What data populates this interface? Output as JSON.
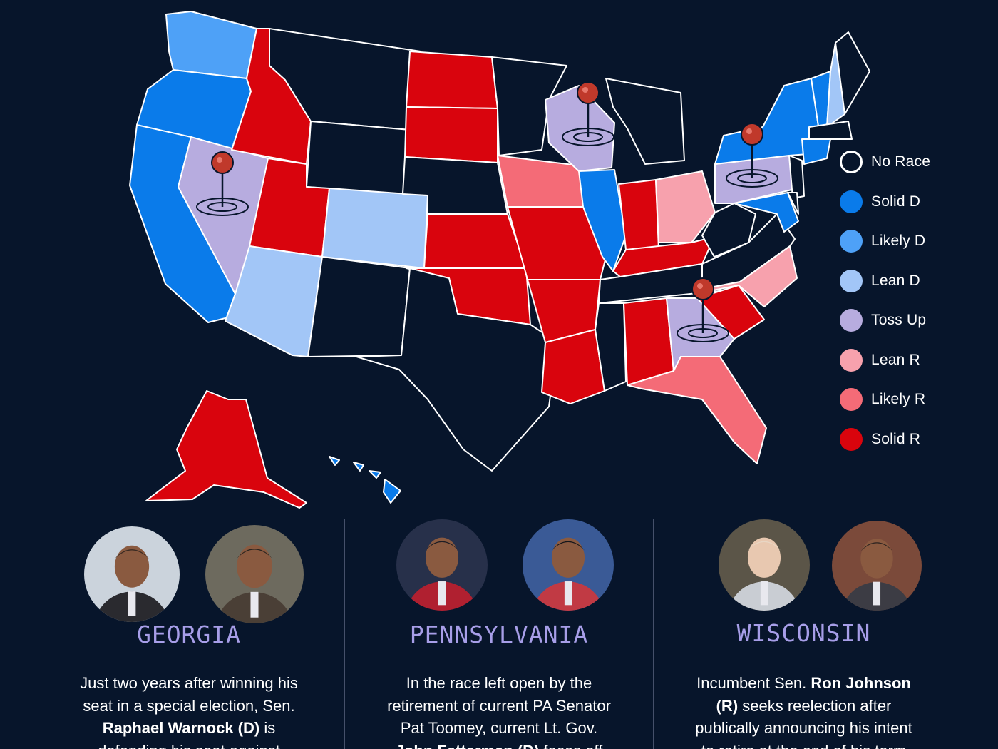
{
  "colors": {
    "background": "#07152b",
    "no_race": "#07152b",
    "solid_d": "#0a7bea",
    "likely_d": "#4ea1f7",
    "lean_d": "#a2c6f7",
    "toss_up": "#b7acdf",
    "lean_r": "#f7a1ad",
    "likely_r": "#f46b77",
    "solid_r": "#d9040d",
    "state_border": "#ffffff",
    "pin": "#c0392b",
    "headline": "#a79ee8"
  },
  "legend": [
    {
      "key": "no_race",
      "label": "No Race"
    },
    {
      "key": "solid_d",
      "label": "Solid D"
    },
    {
      "key": "likely_d",
      "label": "Likely D"
    },
    {
      "key": "lean_d",
      "label": "Lean D"
    },
    {
      "key": "toss_up",
      "label": "Toss Up"
    },
    {
      "key": "lean_r",
      "label": "Lean R"
    },
    {
      "key": "likely_r",
      "label": "Likely R"
    },
    {
      "key": "solid_r",
      "label": "Solid R"
    }
  ],
  "map": {
    "states": {
      "WA": "likely_d",
      "OR": "solid_d",
      "CA": "solid_d",
      "NV": "toss_up",
      "ID": "solid_r",
      "MT": "no_race",
      "WY": "no_race",
      "UT": "solid_r",
      "AZ": "lean_d",
      "CO": "lean_d",
      "NM": "no_race",
      "ND": "solid_r",
      "SD": "solid_r",
      "NE": "no_race",
      "KS": "solid_r",
      "OK": "solid_r",
      "TX": "no_race",
      "MN": "no_race",
      "IA": "likely_r",
      "MO": "solid_r",
      "AR": "solid_r",
      "LA": "solid_r",
      "WI": "toss_up",
      "IL": "solid_d",
      "MI": "no_race",
      "IN": "solid_r",
      "OH": "lean_r",
      "KY": "solid_r",
      "TN": "no_race",
      "MS": "no_race",
      "AL": "solid_r",
      "GA": "toss_up",
      "FL": "likely_r",
      "SC": "solid_r",
      "NC": "lean_r",
      "VA": "no_race",
      "WV": "no_race",
      "PA": "toss_up",
      "NY": "solid_d",
      "VT": "solid_d",
      "NH": "lean_d",
      "ME": "no_race",
      "MA": "no_race",
      "CT": "solid_d",
      "NJ": "no_race",
      "MD": "solid_d",
      "DE": "no_race",
      "AK": "solid_r",
      "HI": "solid_d"
    },
    "pins": [
      "NV",
      "WI",
      "PA",
      "GA"
    ]
  },
  "races": [
    {
      "state": "GEORGIA",
      "photos": [
        "georgia-candidate-1",
        "georgia-candidate-2"
      ],
      "lines": [
        [
          {
            "t": "Just two years after winning his",
            "b": false
          }
        ],
        [
          {
            "t": "seat in a special election, Sen.",
            "b": false
          }
        ],
        [
          {
            "t": "Raphael Warnock (D)",
            "b": true
          },
          {
            "t": " is",
            "b": false
          }
        ],
        [
          {
            "t": "defending his seat against",
            "b": false
          }
        ]
      ]
    },
    {
      "state": "PENNSYLVANIA",
      "photos": [
        "pennsylvania-candidate-1",
        "pennsylvania-candidate-2"
      ],
      "lines": [
        [
          {
            "t": "In the race left open by the",
            "b": false
          }
        ],
        [
          {
            "t": "retirement of current PA Senator",
            "b": false
          }
        ],
        [
          {
            "t": "Pat Toomey, current Lt. Gov.",
            "b": false
          }
        ],
        [
          {
            "t": "John Fetterman (D)",
            "b": true
          },
          {
            "t": " faces off",
            "b": false
          }
        ]
      ]
    },
    {
      "state": "WISCONSIN",
      "photos": [
        "wisconsin-candidate-1",
        "wisconsin-candidate-2"
      ],
      "lines": [
        [
          {
            "t": "Incumbent Sen. ",
            "b": false
          },
          {
            "t": "Ron Johnson",
            "b": true
          }
        ],
        [
          {
            "t": "(R)",
            "b": true
          },
          {
            "t": " seeks reelection after",
            "b": false
          }
        ],
        [
          {
            "t": "publically announcing his intent",
            "b": false
          }
        ],
        [
          {
            "t": "to retire at the end of his term",
            "b": false
          }
        ]
      ]
    }
  ]
}
